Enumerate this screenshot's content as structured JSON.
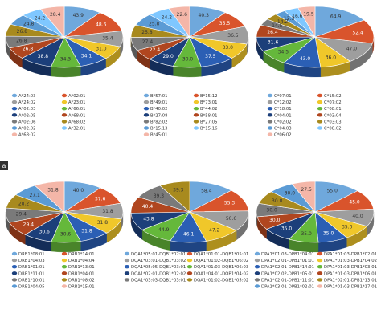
{
  "panel_label": "a",
  "chart_data": [
    {
      "type": "pie",
      "legend": [
        "A*24:03",
        "A*02:01",
        "A*24:02",
        "A*23:01",
        "A*02:03",
        "A*66:01",
        "A*02:05",
        "A*68:01",
        "A*02:06",
        "A*68:02",
        "A*02:02",
        "A*32:01",
        "A*68:02"
      ],
      "values": [
        43.9,
        48.6,
        35.4,
        31.0,
        34.1,
        34.3,
        38.8,
        26.8,
        26.8,
        26.8,
        24.8,
        24.2,
        28.4
      ],
      "colors": [
        "#6fa8dc",
        "#d9542c",
        "#9e9e9e",
        "#f0c72a",
        "#2b5fb4",
        "#65b83b",
        "#1c3f7a",
        "#b0461f",
        "#7a7a7a",
        "#a88a1e",
        "#5b9bd5",
        "#7fc7ff",
        "#f4b6a8"
      ]
    },
    {
      "type": "pie",
      "legend": [
        "B*57:01",
        "B*15:12",
        "B*49:01",
        "B*73:01",
        "B*40:02",
        "B*44:02",
        "B*27:08",
        "B*58:01",
        "B*82:02",
        "B*27:05",
        "B*15:13",
        "B*15:16",
        "B*45:01"
      ],
      "values": [
        40.3,
        35.5,
        36.5,
        33.0,
        37.5,
        30.0,
        29.0,
        22.4,
        27.4,
        25.8,
        25.8,
        24.2,
        22.6
      ],
      "colors": [
        "#6fa8dc",
        "#d9542c",
        "#9e9e9e",
        "#f0c72a",
        "#2b5fb4",
        "#65b83b",
        "#1c3f7a",
        "#b0461f",
        "#7a7a7a",
        "#a88a1e",
        "#5b9bd5",
        "#7fc7ff",
        "#f4b6a8"
      ]
    },
    {
      "type": "pie",
      "legend": [
        "C*07:01",
        "C*15:02",
        "C*12:02",
        "C*07:02",
        "C*18:01",
        "C*08:01",
        "C*04:01",
        "C*03:04",
        "C*02:02",
        "C*03:03",
        "C*04:03",
        "C*08:02",
        "C*06:02"
      ],
      "values": [
        64.9,
        52.4,
        47.0,
        36.0,
        43.0,
        34.5,
        31.6,
        26.4,
        14.5,
        14.2,
        12.3,
        16.6,
        19.5
      ],
      "colors": [
        "#6fa8dc",
        "#d9542c",
        "#9e9e9e",
        "#f0c72a",
        "#2b5fb4",
        "#65b83b",
        "#1c3f7a",
        "#b0461f",
        "#7a7a7a",
        "#a88a1e",
        "#5b9bd5",
        "#7fc7ff",
        "#f4b6a8"
      ]
    },
    {
      "type": "pie",
      "legend": [
        "DRB1*08:01",
        "DRB1*14:01",
        "DRB1*04:03",
        "DRB1*04:04",
        "DRB1*01:01",
        "DRB1*13:01",
        "DRB1*11:01",
        "DRB1*04:01",
        "DRB1*10:01",
        "DRB1*08:02",
        "DRB1*04:05",
        "DRB1*15:01"
      ],
      "values": [
        40.0,
        37.6,
        31.8,
        31.8,
        31.8,
        30.6,
        30.6,
        29.4,
        29.4,
        28.2,
        27.1,
        31.8
      ],
      "colors": [
        "#6fa8dc",
        "#d9542c",
        "#9e9e9e",
        "#f0c72a",
        "#2b5fb4",
        "#65b83b",
        "#1c3f7a",
        "#b0461f",
        "#7a7a7a",
        "#a88a1e",
        "#5b9bd5",
        "#f4b6a8"
      ]
    },
    {
      "type": "pie",
      "legend": [
        "DQA1*05:01-DQB1*02:01",
        "DQA1*01:01-DQB1*05:01",
        "DQA1*03:01-DQB1*03:02",
        "DQA1*01:02-DQB1*06:02",
        "DQA1*05:05-DQB1*03:01",
        "DQA1*01:03-DQB1*06:03",
        "DQA1*02:01-DQB1*02:02",
        "DQA1*04:01-DQB1*04:02",
        "DQA1*03:03-DQB1*03:01",
        "DQA1*01:02-DQB1*05:02"
      ],
      "values": [
        58.4,
        55.3,
        50.6,
        47.2,
        46.1,
        44.9,
        43.8,
        40.4,
        39.3,
        39.3
      ],
      "colors": [
        "#6fa8dc",
        "#d9542c",
        "#9e9e9e",
        "#f0c72a",
        "#2b5fb4",
        "#65b83b",
        "#1c3f7a",
        "#b0461f",
        "#7a7a7a",
        "#a88a1e"
      ]
    },
    {
      "type": "pie",
      "legend": [
        "DPA1*01:03-DPB1*04:01",
        "DPA1*01:03-DPB1*02:01",
        "DPA1*02:01-DPB1*01:01",
        "DPA1*01:03-DPB1*04:02",
        "DPA1*02:01-DPB1*14:01",
        "DPA1*01:03-DPB1*03:01",
        "DPA1*02:02-DPB1*05:01",
        "DPA1*01:03-DPB1*06:01",
        "DPA1*02:01-DPB1*11:01",
        "DPA1*02:01-DPB1*13:01",
        "DPA1*03:01-DPB1*02:01",
        "DPA1*01:03-DPB1*17:01"
      ],
      "values": [
        55.0,
        45.0,
        40.0,
        35.0,
        35.0,
        35.0,
        35.0,
        30.0,
        30.0,
        30.0,
        30.0,
        27.5
      ],
      "colors": [
        "#6fa8dc",
        "#d9542c",
        "#9e9e9e",
        "#f0c72a",
        "#2b5fb4",
        "#65b83b",
        "#1c3f7a",
        "#b0461f",
        "#7a7a7a",
        "#a88a1e",
        "#5b9bd5",
        "#f4b6a8"
      ]
    }
  ]
}
